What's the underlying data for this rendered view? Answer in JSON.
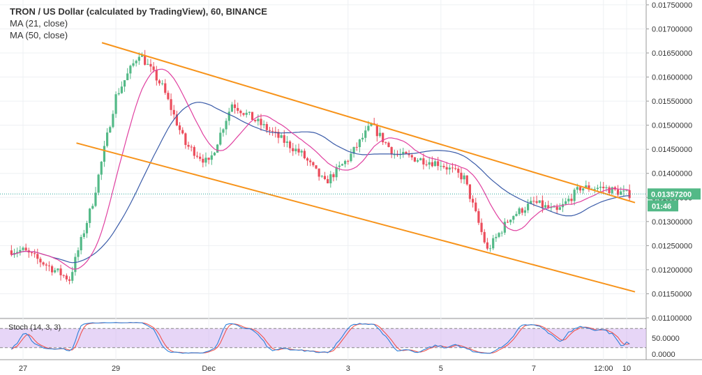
{
  "legend": {
    "title": "TRON / US Dollar (calculated by TradingView), 60, BINANCE",
    "ma21": "MA (21, close)",
    "ma50": "MA (50, close)"
  },
  "stoch_label": "Stoch (14, 3, 3)",
  "last_price": "0.01357200",
  "countdown": "01:46",
  "colors": {
    "up": "#53b987",
    "down": "#eb4d5c",
    "ma21": "#e040a0",
    "ma50": "#3a5ba8",
    "channel": "#f7931a",
    "stoch_k": "#2d7fd8",
    "stoch_d": "#f0534e",
    "stoch_band": "#d3b4f0",
    "price_line": "#26a69a"
  },
  "chart_data": {
    "type": "candlestick",
    "price_axis": {
      "ylim": [
        0.011,
        0.0176
      ],
      "ticks": [
        "0.01100000",
        "0.01150000",
        "0.01200000",
        "0.01250000",
        "0.01300000",
        "0.01350000",
        "0.01400000",
        "0.01450000",
        "0.01500000",
        "0.01550000",
        "0.01600000",
        "0.01650000",
        "0.01700000",
        "0.01750000"
      ]
    },
    "stoch_axis": {
      "ylim": [
        0,
        100
      ],
      "ticks": [
        "0.0000",
        "50.0000"
      ],
      "bands": [
        20,
        80
      ]
    },
    "x_ticks": [
      "27",
      "29",
      "Dec",
      "3",
      "5",
      "7",
      "12:00",
      "10"
    ],
    "channel": {
      "upper": [
        [
          "Nov 29",
          0.01667
        ],
        [
          "Dec 10",
          0.01345
        ]
      ],
      "lower": [
        [
          "Nov 28",
          0.01463
        ],
        [
          "Dec 10",
          0.01154
        ]
      ]
    },
    "ohlc_anchors": [
      [
        "Nov 27",
        0.0124
      ],
      [
        "Nov 28",
        0.0118
      ],
      [
        "Nov 28 12:00",
        0.0134
      ],
      [
        "Nov 29",
        0.0156
      ],
      [
        "Nov 29 12:00",
        0.0165
      ],
      [
        "Nov 30",
        0.0158
      ],
      [
        "Nov 30 12:00",
        0.0146
      ],
      [
        "Dec 1",
        0.0142
      ],
      [
        "Dec 1 12:00",
        0.01545
      ],
      [
        "Dec 2",
        0.0151
      ],
      [
        "Dec 3",
        0.0144
      ],
      [
        "Dec 3 12:00",
        0.0138
      ],
      [
        "Dec 4",
        0.0143
      ],
      [
        "Dec 4 12:00",
        0.015
      ],
      [
        "Dec 5",
        0.0144
      ],
      [
        "Dec 6",
        0.0142
      ],
      [
        "Dec 6 12:00",
        0.0139
      ],
      [
        "Dec 7",
        0.0124
      ],
      [
        "Dec 7 12:00",
        0.0131
      ],
      [
        "Dec 8",
        0.0134
      ],
      [
        "Dec 8 12:00",
        0.0132
      ],
      [
        "Dec 9",
        0.0137
      ],
      [
        "Dec 9 12:00",
        0.0137
      ],
      [
        "Dec 10",
        0.01357
      ]
    ]
  }
}
